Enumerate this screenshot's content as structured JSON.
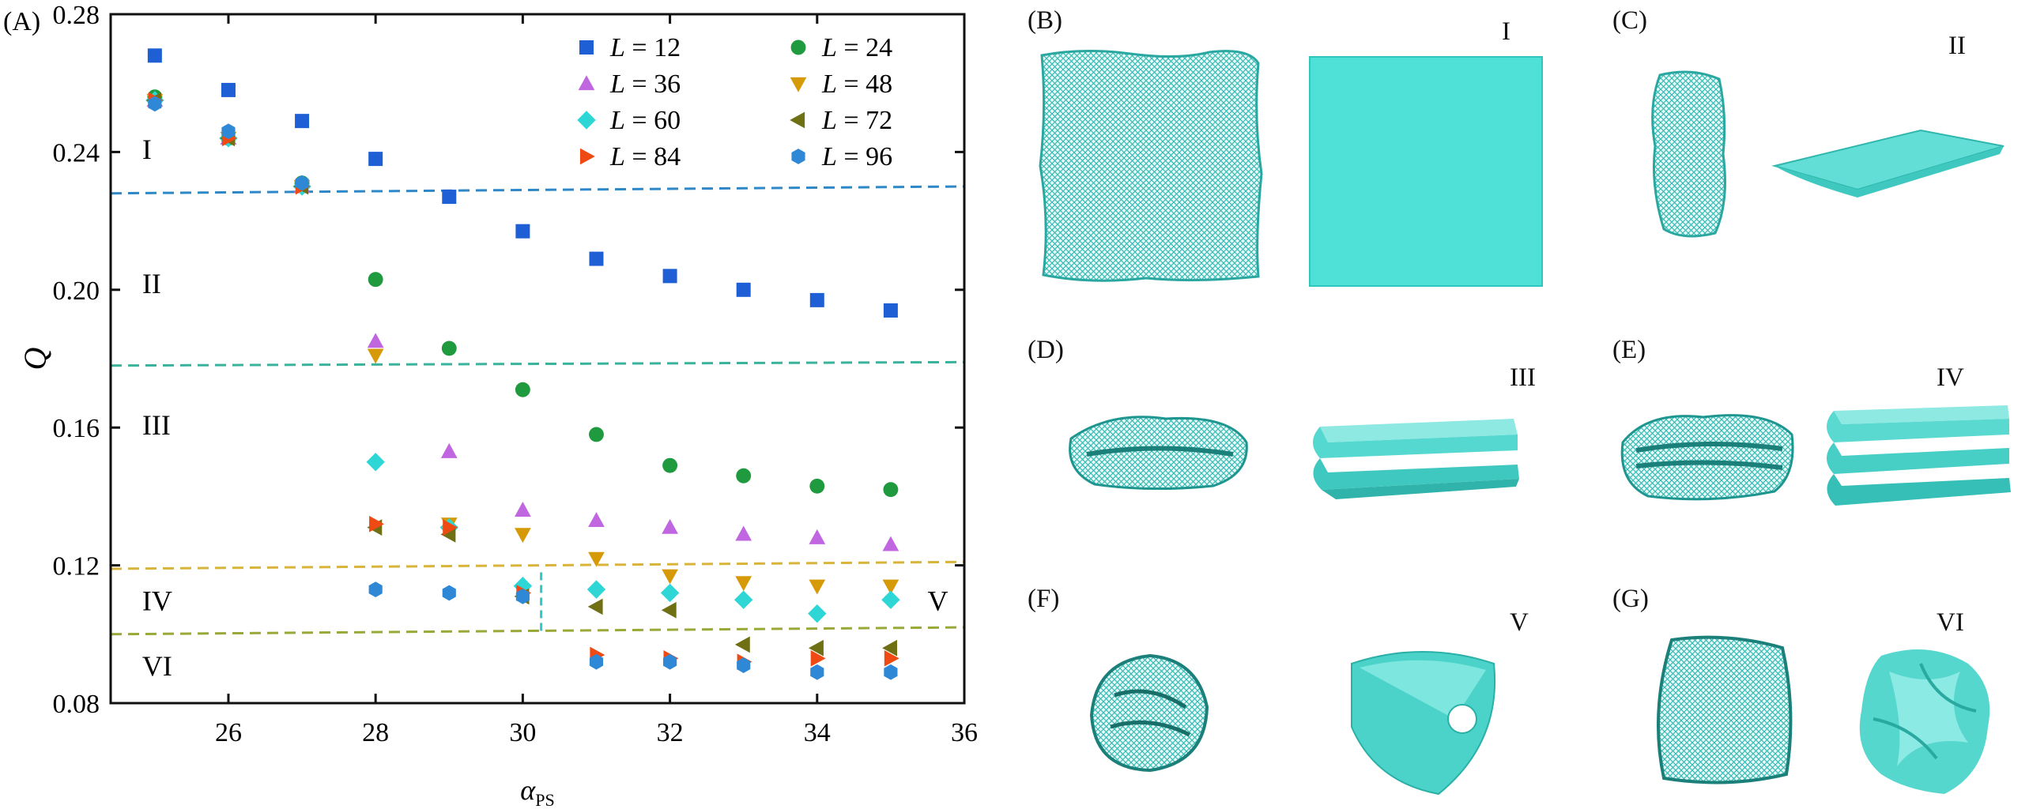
{
  "chart_data": {
    "type": "scatter",
    "panel_label": "(A)",
    "xlabel": "α",
    "xlabel_sub": "PS",
    "ylabel": "Q",
    "xlim": [
      24.4,
      36
    ],
    "ylim": [
      0.08,
      0.28
    ],
    "xticks": [
      "26",
      "28",
      "30",
      "32",
      "34",
      "36"
    ],
    "xtick_values": [
      26,
      28,
      30,
      32,
      34,
      36
    ],
    "yticks": [
      "0.08",
      "0.12",
      "0.16",
      "0.20",
      "0.24",
      "0.28"
    ],
    "ytick_values": [
      0.08,
      0.12,
      0.16,
      0.2,
      0.24,
      0.28
    ],
    "legend_position": "top-right",
    "series": [
      {
        "name": "L = 12",
        "L": "12",
        "marker": "square",
        "color": "#1f5fd6",
        "x": [
          25,
          26,
          27,
          28,
          29,
          30,
          31,
          32,
          33,
          34,
          35
        ],
        "y": [
          0.268,
          0.258,
          0.249,
          0.238,
          0.227,
          0.217,
          0.209,
          0.204,
          0.2,
          0.197,
          0.194
        ]
      },
      {
        "name": "L = 24",
        "L": "24",
        "marker": "circle",
        "color": "#1f9a3f",
        "x": [
          25,
          26,
          27,
          28,
          29,
          30,
          31,
          32,
          33,
          34,
          35
        ],
        "y": [
          0.256,
          0.244,
          0.231,
          0.203,
          0.183,
          0.171,
          0.158,
          0.149,
          0.146,
          0.143,
          0.142
        ]
      },
      {
        "name": "L = 36",
        "L": "36",
        "marker": "triangle-up",
        "color": "#c066e0",
        "x": [
          25,
          26,
          27,
          28,
          29,
          30,
          31,
          32,
          33,
          34,
          35
        ],
        "y": [
          0.255,
          0.244,
          0.23,
          0.185,
          0.153,
          0.136,
          0.133,
          0.131,
          0.129,
          0.128,
          0.126
        ]
      },
      {
        "name": "L = 48",
        "L": "48",
        "marker": "triangle-down",
        "color": "#d69a08",
        "x": [
          25,
          26,
          27,
          28,
          29,
          30,
          31,
          32,
          33,
          34,
          35
        ],
        "y": [
          0.255,
          0.244,
          0.23,
          0.181,
          0.132,
          0.129,
          0.122,
          0.117,
          0.115,
          0.114,
          0.114
        ]
      },
      {
        "name": "L = 60",
        "L": "60",
        "marker": "diamond",
        "color": "#2ed6d6",
        "x": [
          25,
          26,
          27,
          28,
          29,
          30,
          31,
          32,
          33,
          34,
          35
        ],
        "y": [
          0.255,
          0.244,
          0.23,
          0.15,
          0.131,
          0.114,
          0.113,
          0.112,
          0.11,
          0.106,
          0.11
        ]
      },
      {
        "name": "L = 72",
        "L": "72",
        "marker": "triangle-left",
        "color": "#6f6f14",
        "x": [
          25,
          26,
          27,
          28,
          29,
          30,
          31,
          32,
          33,
          34,
          35
        ],
        "y": [
          0.255,
          0.244,
          0.23,
          0.131,
          0.129,
          0.111,
          0.108,
          0.107,
          0.097,
          0.096,
          0.096
        ]
      },
      {
        "name": "L = 84",
        "L": "84",
        "marker": "triangle-right",
        "color": "#f04a14",
        "x": [
          25,
          26,
          27,
          28,
          29,
          30,
          31,
          32,
          33,
          34,
          35
        ],
        "y": [
          0.255,
          0.244,
          0.23,
          0.132,
          0.131,
          0.112,
          0.094,
          0.093,
          0.092,
          0.093,
          0.093
        ]
      },
      {
        "name": "L = 96",
        "L": "96",
        "marker": "hexagon",
        "color": "#2e88d6",
        "x": [
          25,
          26,
          27,
          28,
          29,
          30,
          31,
          32,
          33,
          34,
          35
        ],
        "y": [
          0.254,
          0.246,
          0.231,
          0.113,
          0.112,
          0.111,
          0.092,
          0.092,
          0.091,
          0.089,
          0.089
        ]
      }
    ],
    "boundaries": [
      {
        "y_start": 0.228,
        "y_end": 0.23,
        "color": "#2e88c8"
      },
      {
        "y_start": 0.178,
        "y_end": 0.179,
        "color": "#3ab29c"
      },
      {
        "y_start": 0.119,
        "y_end": 0.121,
        "color": "#d8b43a"
      },
      {
        "y_start": 0.1,
        "y_end": 0.102,
        "color": "#9aa838"
      }
    ],
    "vertical_boundary": {
      "x": 30.25,
      "y_from": 0.101,
      "y_to": 0.118,
      "color": "#2ec8c8"
    },
    "regions": [
      {
        "label": "I",
        "x": 24.7,
        "y": 0.238
      },
      {
        "label": "II",
        "x": 24.7,
        "y": 0.199
      },
      {
        "label": "III",
        "x": 24.7,
        "y": 0.158
      },
      {
        "label": "IV",
        "x": 24.7,
        "y": 0.107
      },
      {
        "label": "V",
        "x": 35.5,
        "y": 0.107
      },
      {
        "label": "VI",
        "x": 24.7,
        "y": 0.088
      }
    ]
  },
  "panels": [
    {
      "label": "(B)",
      "roman": "I"
    },
    {
      "label": "(C)",
      "roman": "II"
    },
    {
      "label": "(D)",
      "roman": "III"
    },
    {
      "label": "(E)",
      "roman": "IV"
    },
    {
      "label": "(F)",
      "roman": "V"
    },
    {
      "label": "(G)",
      "roman": "VI"
    }
  ],
  "colors": {
    "teal": "#4ad6cf",
    "teal_dark": "#1f9e98",
    "axis": "#111111"
  }
}
